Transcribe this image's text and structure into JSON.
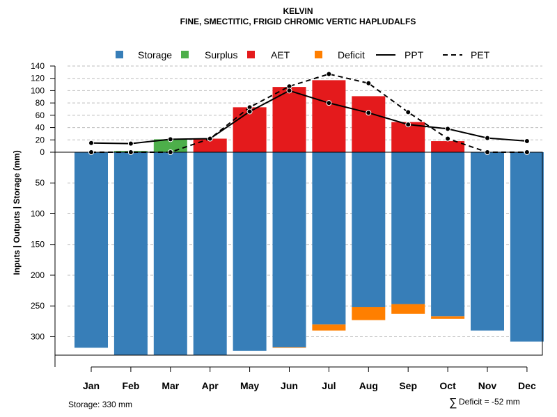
{
  "chart_data": {
    "type": "bar",
    "title": "KELVIN",
    "subtitle": "FINE, SMECTITIC, FRIGID CHROMIC VERTIC HAPLUDALFS",
    "ylabel": "Inputs | Outputs | Storage    (mm)",
    "categories": [
      "Jan",
      "Feb",
      "Mar",
      "Apr",
      "May",
      "Jun",
      "Jul",
      "Aug",
      "Sep",
      "Oct",
      "Nov",
      "Dec"
    ],
    "upper_ticks": [
      "0",
      "20",
      "40",
      "60",
      "80",
      "100",
      "120",
      "140"
    ],
    "lower_ticks": [
      "50",
      "100",
      "150",
      "200",
      "250",
      "300"
    ],
    "ylim_upper": [
      0,
      140
    ],
    "ylim_lower": [
      0,
      330
    ],
    "storage_capacity": 330,
    "series": [
      {
        "name": "Storage",
        "color": "#377EB8",
        "values": [
          318,
          330,
          330,
          330,
          323,
          317,
          280,
          252,
          247,
          267,
          290,
          308
        ]
      },
      {
        "name": "Surplus",
        "color": "#4DAF4A",
        "values": [
          0,
          2,
          21,
          0,
          0,
          0,
          0,
          0,
          0,
          0,
          0,
          0
        ]
      },
      {
        "name": "AET",
        "color": "#E41A1C",
        "values": [
          0,
          0,
          0,
          22,
          73,
          106,
          117,
          91,
          49,
          18,
          0,
          0
        ]
      },
      {
        "name": "Deficit",
        "color": "#FF7F00",
        "values": [
          0,
          0,
          0,
          0,
          0,
          1,
          10,
          21,
          16,
          4,
          0,
          0
        ]
      },
      {
        "name": "PPT",
        "color": "#000000",
        "style": "solid",
        "values": [
          15,
          14,
          21,
          22,
          66,
          100,
          80,
          64,
          45,
          38,
          23,
          18
        ]
      },
      {
        "name": "PET",
        "color": "#000000",
        "style": "dashed",
        "values": [
          0,
          0,
          0,
          22,
          73,
          107,
          127,
          112,
          65,
          22,
          0,
          0
        ]
      }
    ],
    "legend": [
      "Storage",
      "Surplus",
      "AET",
      "Deficit",
      "PPT",
      "PET"
    ],
    "legend_position": "top",
    "grid": true
  },
  "footer": {
    "storage_note": "Storage: 330 mm",
    "deficit_symbol": "∑",
    "deficit_note": "Deficit = -52 mm"
  }
}
